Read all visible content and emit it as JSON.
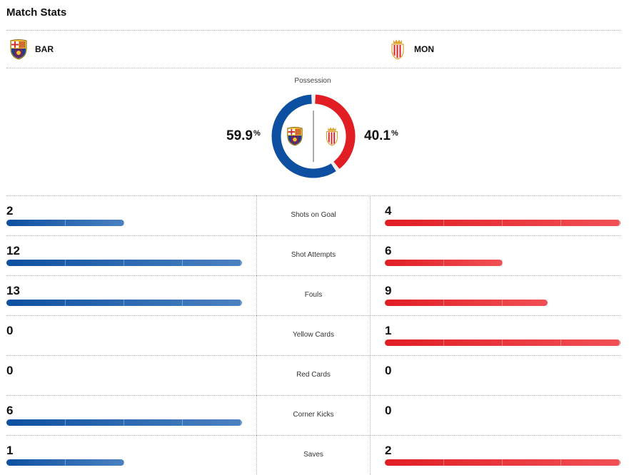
{
  "header": {
    "title": "Match Stats"
  },
  "teams": {
    "home": {
      "abbr": "BAR",
      "color": "#0d4fa0",
      "logo_icon": "barcelona-crest-icon"
    },
    "away": {
      "abbr": "MON",
      "color": "#e01e24",
      "logo_icon": "monaco-crest-icon"
    }
  },
  "possession": {
    "label": "Possession",
    "home_value": "59.9",
    "away_value": "40.1",
    "unit": "%",
    "home_fraction": 0.599,
    "away_fraction": 0.401
  },
  "stats": {
    "max_scale": 13,
    "rows": [
      {
        "label": "Shots on Goal",
        "home": "2",
        "away": "4",
        "home_fraction": 0.5,
        "away_fraction": 1.0
      },
      {
        "label": "Shot Attempts",
        "home": "12",
        "away": "6",
        "home_fraction": 1.0,
        "away_fraction": 0.5
      },
      {
        "label": "Fouls",
        "home": "13",
        "away": "9",
        "home_fraction": 1.0,
        "away_fraction": 0.69
      },
      {
        "label": "Yellow Cards",
        "home": "0",
        "away": "1",
        "home_fraction": 0,
        "away_fraction": 1.0
      },
      {
        "label": "Red Cards",
        "home": "0",
        "away": "0",
        "home_fraction": 0,
        "away_fraction": 0
      },
      {
        "label": "Corner Kicks",
        "home": "6",
        "away": "0",
        "home_fraction": 1.0,
        "away_fraction": 0
      },
      {
        "label": "Saves",
        "home": "1",
        "away": "2",
        "home_fraction": 0.5,
        "away_fraction": 1.0
      }
    ]
  }
}
